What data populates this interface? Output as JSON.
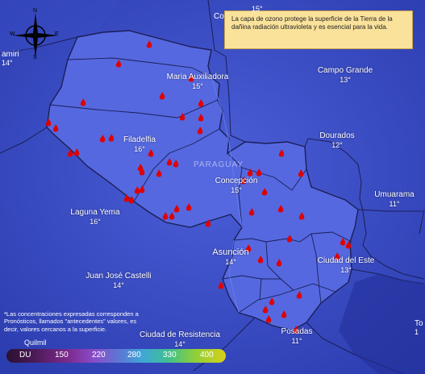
{
  "info_box": "La capa de ozono protege la superficie de la Tierra de la dañina radiación ultravioleta y es esencial para la vida.",
  "country_label": "PARAGUAY",
  "compass": {
    "n": "N",
    "s": "S",
    "e": "E",
    "w": "W"
  },
  "cities": [
    {
      "name": "Maria Auxiliadora",
      "temp": "15°"
    },
    {
      "name": "Campo Grande",
      "temp": "13°"
    },
    {
      "name": "Filadelfia",
      "temp": "16°"
    },
    {
      "name": "Dourados",
      "temp": "12°"
    },
    {
      "name": "Concepción",
      "temp": "15°"
    },
    {
      "name": "Umuarama",
      "temp": "11°"
    },
    {
      "name": "Laguna Yema",
      "temp": "16°"
    },
    {
      "name": "Asunción",
      "temp": "14°"
    },
    {
      "name": "Ciudad del Este",
      "temp": "13°"
    },
    {
      "name": "Juan José Castelli",
      "temp": "14°"
    },
    {
      "name": "Ciudad de Resistencia",
      "temp": "14°"
    },
    {
      "name": "Posadas",
      "temp": "11°"
    }
  ],
  "partial_labels": {
    "left_city": "amiri",
    "left_temp": "14°",
    "top_city": "Co",
    "top_temp": "15°",
    "right_city": "To",
    "right_temp": "1",
    "bottom_city": "Quilmil"
  },
  "footnote": "*Las concentraciones expresadas corresponden a Pronósticos, llamados \"antecedentes\" valores, es decir, valores cercanos a la superficie.",
  "legend": {
    "unit": "DU",
    "ticks": [
      "150",
      "220",
      "280",
      "330",
      "400"
    ],
    "colors": [
      "#2a1030",
      "#7c2a8e",
      "#5a7ad6",
      "#3fc08c",
      "#d7d11a"
    ]
  },
  "colors": {
    "background": "#2e3fb6",
    "paraguay": "#5568e0",
    "borders": "#1a1f55",
    "fire": "#e00000",
    "info_box": "#fae29b"
  },
  "fire_icon": "fire-hotspot-icon"
}
